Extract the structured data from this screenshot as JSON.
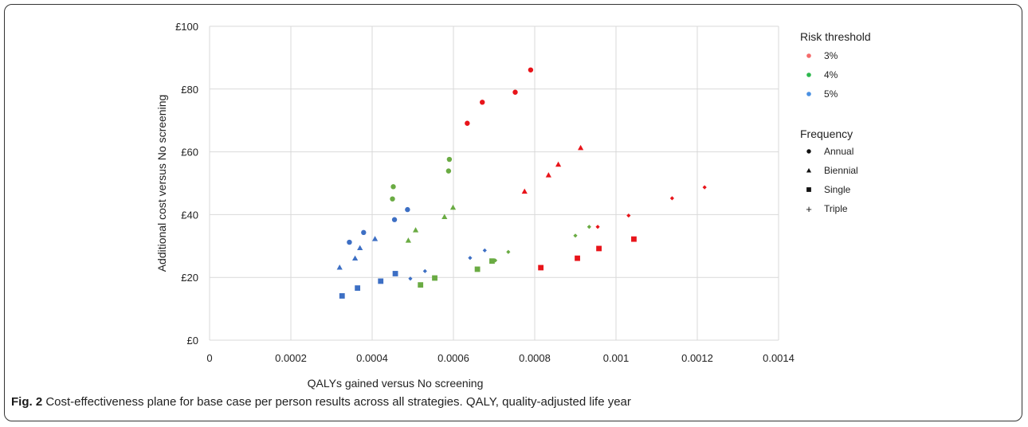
{
  "chart_data": {
    "type": "scatter",
    "xlabel": "QALYs gained versus No screening",
    "ylabel": "Additional cost versus No screening",
    "xlim": [
      0,
      0.0014
    ],
    "ylim": [
      0,
      100
    ],
    "x_ticks": [
      {
        "value": 0,
        "label": "0"
      },
      {
        "value": 0.0002,
        "label": "0.0002"
      },
      {
        "value": 0.0004,
        "label": "0.0004"
      },
      {
        "value": 0.0006,
        "label": "0.0006"
      },
      {
        "value": 0.0008,
        "label": "0.0008"
      },
      {
        "value": 0.001,
        "label": "0.001"
      },
      {
        "value": 0.0012,
        "label": "0.0012"
      },
      {
        "value": 0.0014,
        "label": "0.0014"
      }
    ],
    "y_ticks": [
      {
        "value": 0,
        "label": "£0"
      },
      {
        "value": 20,
        "label": "£20"
      },
      {
        "value": 40,
        "label": "£40"
      },
      {
        "value": 60,
        "label": "£60"
      },
      {
        "value": 80,
        "label": "£80"
      },
      {
        "value": 100,
        "label": "£100"
      }
    ],
    "grid": true,
    "legend_placement": "right",
    "legends": {
      "risk_title": "Risk threshold",
      "risk_items": [
        {
          "label": "3%",
          "color": "#f46b6b"
        },
        {
          "label": "4%",
          "color": "#2db84d"
        },
        {
          "label": "5%",
          "color": "#4a90e2"
        }
      ],
      "frequency_title": "Frequency",
      "frequency_items": [
        {
          "label": "Annual",
          "shape": "circle"
        },
        {
          "label": "Biennial",
          "shape": "triangle"
        },
        {
          "label": "Single",
          "shape": "square"
        },
        {
          "label": "Triple",
          "shape": "plus"
        }
      ]
    },
    "series_colors": {
      "3%": "#e8141a",
      "4%": "#6aab43",
      "5%": "#3d6fc4"
    },
    "series": [
      {
        "risk": "3%",
        "frequency": "Annual",
        "points": [
          [
            0.000634,
            69.1
          ],
          [
            0.000671,
            75.8
          ],
          [
            0.000752,
            79.0
          ],
          [
            0.00079,
            86.1
          ]
        ]
      },
      {
        "risk": "3%",
        "frequency": "Biennial",
        "points": [
          [
            0.000775,
            47.4
          ],
          [
            0.000834,
            52.6
          ],
          [
            0.000858,
            56.0
          ],
          [
            0.000913,
            61.3
          ]
        ]
      },
      {
        "risk": "3%",
        "frequency": "Single",
        "points": [
          [
            0.000815,
            23.1
          ],
          [
            0.000905,
            26.1
          ],
          [
            0.000958,
            29.2
          ],
          [
            0.001044,
            32.2
          ]
        ]
      },
      {
        "risk": "3%",
        "frequency": "Triple",
        "points": [
          [
            0.000955,
            36.1
          ],
          [
            0.001031,
            39.7
          ],
          [
            0.001138,
            45.2
          ],
          [
            0.001218,
            48.7
          ]
        ]
      },
      {
        "risk": "4%",
        "frequency": "Annual",
        "points": [
          [
            0.00045,
            45.0
          ],
          [
            0.000452,
            48.9
          ],
          [
            0.000588,
            53.9
          ],
          [
            0.00059,
            57.6
          ]
        ]
      },
      {
        "risk": "4%",
        "frequency": "Biennial",
        "points": [
          [
            0.000489,
            31.8
          ],
          [
            0.000507,
            35.1
          ],
          [
            0.000578,
            39.3
          ],
          [
            0.000599,
            42.3
          ]
        ]
      },
      {
        "risk": "4%",
        "frequency": "Single",
        "points": [
          [
            0.000519,
            17.6
          ],
          [
            0.000554,
            19.8
          ],
          [
            0.000659,
            22.6
          ],
          [
            0.000695,
            25.2
          ]
        ]
      },
      {
        "risk": "4%",
        "frequency": "Triple",
        "points": [
          [
            0.000703,
            25.4
          ],
          [
            0.000735,
            28.1
          ],
          [
            0.0009,
            33.3
          ],
          [
            0.000934,
            36.1
          ]
        ]
      },
      {
        "risk": "5%",
        "frequency": "Annual",
        "points": [
          [
            0.000344,
            31.2
          ],
          [
            0.000379,
            34.3
          ],
          [
            0.000455,
            38.4
          ],
          [
            0.000487,
            41.6
          ]
        ]
      },
      {
        "risk": "5%",
        "frequency": "Biennial",
        "points": [
          [
            0.00032,
            23.2
          ],
          [
            0.000358,
            26.1
          ],
          [
            0.00037,
            29.4
          ],
          [
            0.000407,
            32.3
          ]
        ]
      },
      {
        "risk": "5%",
        "frequency": "Single",
        "points": [
          [
            0.000326,
            14.1
          ],
          [
            0.000364,
            16.6
          ],
          [
            0.000421,
            18.8
          ],
          [
            0.000457,
            21.2
          ]
        ]
      },
      {
        "risk": "5%",
        "frequency": "Triple",
        "points": [
          [
            0.000494,
            19.6
          ],
          [
            0.00053,
            22.0
          ],
          [
            0.000641,
            26.2
          ],
          [
            0.000677,
            28.6
          ]
        ]
      }
    ]
  },
  "caption": {
    "label": "Fig. 2",
    "text": " Cost-effectiveness plane for base case per person results across all strategies. QALY, quality-adjusted life year"
  }
}
